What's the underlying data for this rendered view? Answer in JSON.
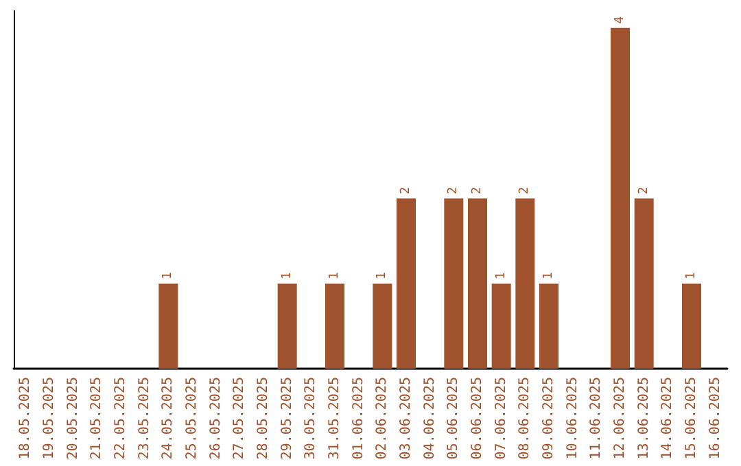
{
  "chart_data": {
    "type": "bar",
    "categories": [
      "18.05.2025",
      "19.05.2025",
      "20.05.2025",
      "21.05.2025",
      "22.05.2025",
      "23.05.2025",
      "24.05.2025",
      "25.05.2025",
      "26.05.2025",
      "27.05.2025",
      "28.05.2025",
      "29.05.2025",
      "30.05.2025",
      "31.05.2025",
      "01.06.2025",
      "02.06.2025",
      "03.06.2025",
      "04.06.2025",
      "05.06.2025",
      "06.06.2025",
      "07.06.2025",
      "08.06.2025",
      "09.06.2025",
      "10.06.2025",
      "11.06.2025",
      "12.06.2025",
      "13.06.2025",
      "14.06.2025",
      "15.06.2025",
      "16.06.2025"
    ],
    "values": [
      null,
      null,
      null,
      null,
      null,
      null,
      1,
      null,
      null,
      null,
      null,
      1,
      null,
      1,
      null,
      1,
      2,
      null,
      2,
      2,
      1,
      2,
      1,
      null,
      null,
      4,
      2,
      null,
      1,
      null
    ],
    "color": "#a0522d",
    "ylim": [
      0,
      4.2
    ],
    "tick_labels": "x",
    "data_labels": true
  }
}
